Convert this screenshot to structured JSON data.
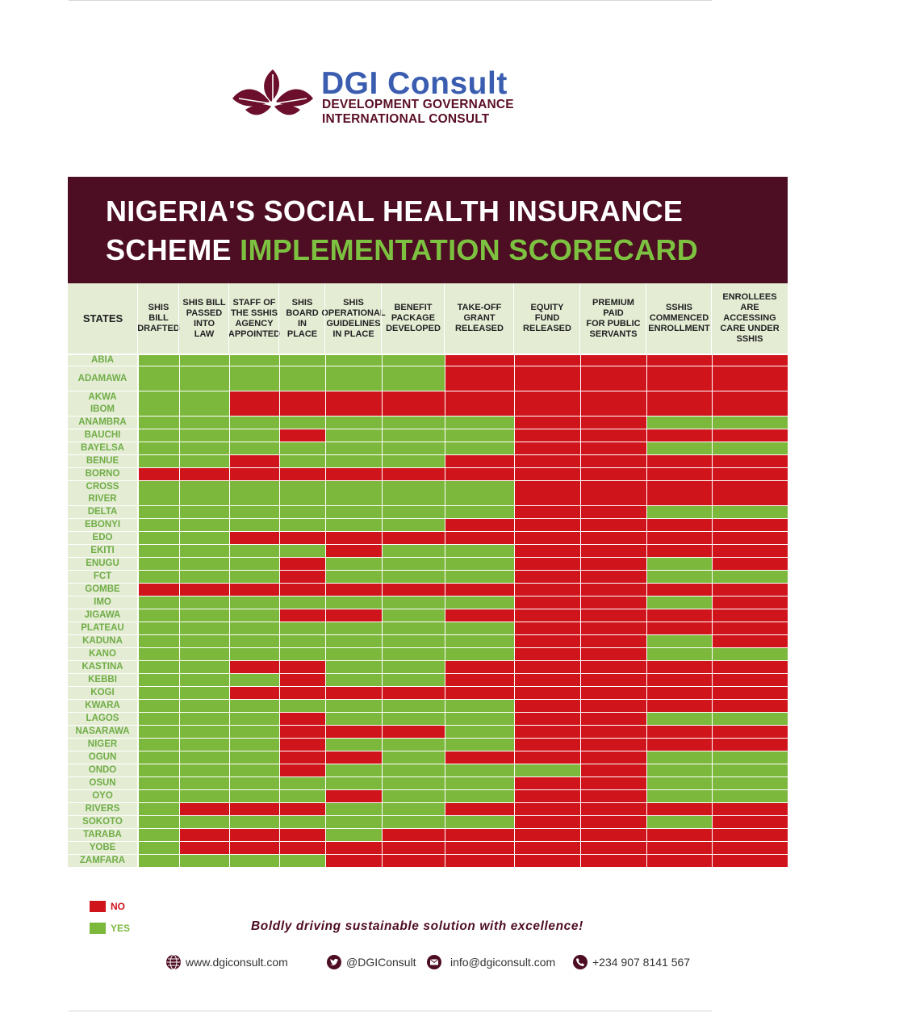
{
  "brand": {
    "name": "DGI Consult",
    "subtitle_line1": "DEVELOPMENT GOVERNANCE",
    "subtitle_line2": "INTERNATIONAL CONSULT"
  },
  "title": {
    "line1": "NIGERIA'S SOCIAL HEALTH INSURANCE",
    "line2_white": "SCHEME",
    "line2_green": "IMPLEMENTATION SCORECARD"
  },
  "colors": {
    "no": "#d0141b",
    "yes": "#7cb83c",
    "banner": "#4d0d22",
    "header_bg": "#e4ecd4",
    "state_text": "#70ad47"
  },
  "chart_data": {
    "type": "table",
    "row_header": "STATES",
    "columns": [
      "SHIS\nBILL\nDRAFTED",
      "SHIS BILL\nPASSED\nINTO\nLAW",
      "STAFF OF\nTHE SSHIS\nAGENCY\nAPPOINTED",
      "SHIS\nBOARD\nIN\nPLACE",
      "SHIS\nOPERATIONAL\nGUIDELINES\nIN PLACE",
      "BENEFIT\nPACKAGE\nDEVELOPED",
      "TAKE-OFF\nGRANT\nRELEASED",
      "EQUITY\nFUND\nRELEASED",
      "PREMIUM\nPAID\nFOR PUBLIC\nSERVANTS",
      "SSHIS\nCOMMENCED\nENROLLMENT",
      "ENROLLEES\nARE ACCESSING\nCARE UNDER\nSSHIS"
    ],
    "rows": [
      {
        "state": "ABIA",
        "values": [
          1,
          1,
          1,
          1,
          1,
          1,
          0,
          0,
          0,
          0,
          0
        ]
      },
      {
        "state": "ADAMAWA",
        "values": [
          1,
          1,
          1,
          1,
          1,
          1,
          0,
          0,
          0,
          0,
          0
        ]
      },
      {
        "state": "AKWA\nIBOM",
        "values": [
          1,
          1,
          0,
          0,
          0,
          0,
          0,
          0,
          0,
          0,
          0
        ]
      },
      {
        "state": "ANAMBRA",
        "values": [
          1,
          1,
          1,
          1,
          1,
          1,
          1,
          0,
          0,
          1,
          1
        ]
      },
      {
        "state": "BAUCHI",
        "values": [
          1,
          1,
          1,
          0,
          1,
          1,
          1,
          0,
          0,
          0,
          0
        ]
      },
      {
        "state": "BAYELSA",
        "values": [
          1,
          1,
          1,
          1,
          1,
          1,
          1,
          0,
          0,
          1,
          1
        ]
      },
      {
        "state": "BENUE",
        "values": [
          1,
          1,
          0,
          1,
          1,
          1,
          0,
          0,
          0,
          0,
          0
        ]
      },
      {
        "state": "BORNO",
        "values": [
          0,
          0,
          0,
          0,
          0,
          0,
          0,
          0,
          0,
          0,
          0
        ]
      },
      {
        "state": "CROSS\nRIVER",
        "values": [
          1,
          1,
          1,
          1,
          1,
          1,
          1,
          0,
          0,
          0,
          0
        ]
      },
      {
        "state": "DELTA",
        "values": [
          1,
          1,
          1,
          1,
          1,
          1,
          1,
          0,
          0,
          1,
          1
        ]
      },
      {
        "state": "EBONYI",
        "values": [
          1,
          1,
          1,
          1,
          1,
          1,
          0,
          0,
          0,
          0,
          0
        ]
      },
      {
        "state": "EDO",
        "values": [
          1,
          1,
          0,
          0,
          0,
          0,
          0,
          0,
          0,
          0,
          0
        ]
      },
      {
        "state": "EKITI",
        "values": [
          1,
          1,
          1,
          1,
          0,
          1,
          1,
          0,
          0,
          0,
          0
        ]
      },
      {
        "state": "ENUGU",
        "values": [
          1,
          1,
          1,
          0,
          1,
          1,
          1,
          0,
          0,
          1,
          0
        ]
      },
      {
        "state": "FCT",
        "values": [
          1,
          1,
          1,
          0,
          1,
          1,
          1,
          0,
          0,
          1,
          1
        ]
      },
      {
        "state": "GOMBE",
        "values": [
          0,
          0,
          0,
          0,
          0,
          0,
          0,
          0,
          0,
          0,
          0
        ]
      },
      {
        "state": "IMO",
        "values": [
          1,
          1,
          1,
          1,
          1,
          1,
          1,
          0,
          0,
          1,
          0
        ]
      },
      {
        "state": "JIGAWA",
        "values": [
          1,
          1,
          1,
          0,
          0,
          1,
          0,
          0,
          0,
          0,
          0
        ]
      },
      {
        "state": "PLATEAU",
        "values": [
          1,
          1,
          1,
          1,
          1,
          1,
          1,
          0,
          0,
          0,
          0
        ]
      },
      {
        "state": "KADUNA",
        "values": [
          1,
          1,
          1,
          1,
          1,
          1,
          1,
          0,
          0,
          1,
          0
        ]
      },
      {
        "state": "KANO",
        "values": [
          1,
          1,
          1,
          1,
          1,
          1,
          1,
          0,
          0,
          1,
          1
        ]
      },
      {
        "state": "KASTINA",
        "values": [
          1,
          1,
          0,
          0,
          1,
          1,
          0,
          0,
          0,
          0,
          0
        ]
      },
      {
        "state": "KEBBI",
        "values": [
          1,
          1,
          1,
          0,
          1,
          1,
          0,
          0,
          0,
          0,
          0
        ]
      },
      {
        "state": "KOGI",
        "values": [
          1,
          1,
          0,
          0,
          0,
          0,
          0,
          0,
          0,
          0,
          0
        ]
      },
      {
        "state": "KWARA",
        "values": [
          1,
          1,
          1,
          1,
          1,
          1,
          1,
          0,
          0,
          0,
          0
        ]
      },
      {
        "state": "LAGOS",
        "values": [
          1,
          1,
          1,
          0,
          1,
          1,
          1,
          0,
          0,
          1,
          1
        ]
      },
      {
        "state": "NASARAWA",
        "values": [
          1,
          1,
          1,
          0,
          0,
          0,
          1,
          0,
          0,
          0,
          0
        ]
      },
      {
        "state": "NIGER",
        "values": [
          1,
          1,
          1,
          0,
          1,
          1,
          1,
          0,
          0,
          0,
          0
        ]
      },
      {
        "state": "OGUN",
        "values": [
          1,
          1,
          1,
          0,
          0,
          1,
          0,
          0,
          0,
          1,
          1
        ]
      },
      {
        "state": "ONDO",
        "values": [
          1,
          1,
          1,
          0,
          1,
          1,
          1,
          1,
          0,
          1,
          1
        ]
      },
      {
        "state": "OSUN",
        "values": [
          1,
          1,
          1,
          1,
          1,
          1,
          1,
          0,
          0,
          1,
          1
        ]
      },
      {
        "state": "OYO",
        "values": [
          1,
          1,
          1,
          1,
          0,
          1,
          1,
          0,
          0,
          1,
          1
        ]
      },
      {
        "state": "RIVERS",
        "values": [
          1,
          0,
          0,
          0,
          1,
          1,
          0,
          0,
          0,
          0,
          0
        ]
      },
      {
        "state": "SOKOTO",
        "values": [
          1,
          1,
          1,
          1,
          1,
          1,
          1,
          0,
          0,
          1,
          0
        ]
      },
      {
        "state": "TARABA",
        "values": [
          1,
          0,
          0,
          0,
          1,
          0,
          0,
          0,
          0,
          0,
          0
        ]
      },
      {
        "state": "YOBE",
        "values": [
          1,
          0,
          0,
          0,
          0,
          0,
          0,
          0,
          0,
          0,
          0
        ]
      },
      {
        "state": "ZAMFARA",
        "values": [
          1,
          1,
          1,
          1,
          0,
          0,
          0,
          0,
          0,
          0,
          0
        ]
      }
    ],
    "legend": [
      {
        "label": "NO",
        "value": 0
      },
      {
        "label": "YES",
        "value": 1
      }
    ]
  },
  "tagline": "Boldly driving sustainable solution with excellence!",
  "contacts": {
    "website": "www.dgiconsult.com",
    "twitter": "@DGIConsult",
    "email": "info@dgiconsult.com",
    "phone": "+234 907 8141 567"
  },
  "icons": {
    "web": "globe-icon",
    "twitter": "twitter-icon",
    "email": "email-icon",
    "phone": "phone-icon"
  }
}
